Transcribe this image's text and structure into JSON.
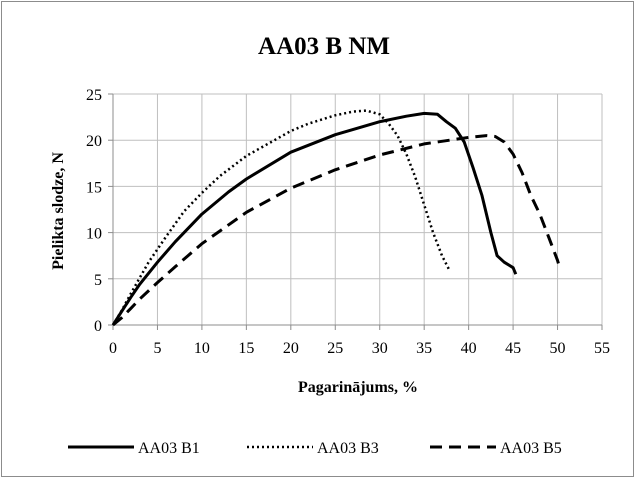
{
  "chart_data": {
    "type": "line",
    "title": "AA03 B NM",
    "xlabel": "Pagarinājums, %",
    "ylabel": "Pielikta slodze, N",
    "xlim": [
      0,
      55
    ],
    "ylim": [
      0,
      25
    ],
    "xticks": [
      0,
      5,
      10,
      15,
      20,
      25,
      30,
      35,
      40,
      45,
      50,
      55
    ],
    "yticks": [
      0,
      5,
      10,
      15,
      20,
      25
    ],
    "grid": true,
    "legend_position": "bottom",
    "series": [
      {
        "name": "AA03 B1",
        "style": "solid",
        "color": "#000000",
        "points": [
          [
            0,
            0
          ],
          [
            1,
            1.5
          ],
          [
            2,
            3
          ],
          [
            3,
            4.4
          ],
          [
            5,
            6.8
          ],
          [
            7,
            9
          ],
          [
            10,
            12
          ],
          [
            13,
            14.4
          ],
          [
            15,
            15.8
          ],
          [
            20,
            18.7
          ],
          [
            25,
            20.6
          ],
          [
            30,
            22.0
          ],
          [
            33,
            22.6
          ],
          [
            35,
            22.9
          ],
          [
            36.5,
            22.8
          ],
          [
            37.5,
            22.0
          ],
          [
            38.5,
            21.3
          ],
          [
            39.5,
            19.8
          ],
          [
            40.5,
            17
          ],
          [
            41.5,
            14
          ],
          [
            42.5,
            10
          ],
          [
            43.2,
            7.5
          ],
          [
            44,
            6.8
          ],
          [
            45,
            6.2
          ],
          [
            45.3,
            5.5
          ]
        ]
      },
      {
        "name": "AA03 B3",
        "style": "dotted",
        "color": "#000000",
        "points": [
          [
            0,
            0
          ],
          [
            1,
            1.6
          ],
          [
            2,
            3.4
          ],
          [
            4,
            6.8
          ],
          [
            6,
            9.6
          ],
          [
            8,
            12.3
          ],
          [
            10,
            14.3
          ],
          [
            12,
            16.1
          ],
          [
            15,
            18.3
          ],
          [
            20,
            21.0
          ],
          [
            22,
            21.8
          ],
          [
            25,
            22.7
          ],
          [
            27,
            23.1
          ],
          [
            28.5,
            23.2
          ],
          [
            30,
            22.8
          ],
          [
            31,
            21.8
          ],
          [
            32,
            20.5
          ],
          [
            33,
            18.5
          ],
          [
            34,
            16
          ],
          [
            35,
            13
          ],
          [
            36,
            10
          ],
          [
            37,
            7.5
          ],
          [
            37.8,
            6
          ]
        ]
      },
      {
        "name": "AA03 B5",
        "style": "dashed",
        "color": "#000000",
        "points": [
          [
            0,
            0
          ],
          [
            1,
            0.8
          ],
          [
            2,
            1.8
          ],
          [
            3,
            2.8
          ],
          [
            5,
            4.6
          ],
          [
            7,
            6.3
          ],
          [
            10,
            8.8
          ],
          [
            15,
            12.2
          ],
          [
            20,
            14.8
          ],
          [
            25,
            16.8
          ],
          [
            30,
            18.4
          ],
          [
            35,
            19.6
          ],
          [
            40,
            20.3
          ],
          [
            42,
            20.5
          ],
          [
            43,
            20.4
          ],
          [
            44,
            19.8
          ],
          [
            45,
            18.5
          ],
          [
            46,
            16.5
          ],
          [
            47,
            14
          ],
          [
            48,
            12
          ],
          [
            49,
            9.5
          ],
          [
            50,
            7
          ],
          [
            50.3,
            6
          ]
        ]
      }
    ]
  }
}
